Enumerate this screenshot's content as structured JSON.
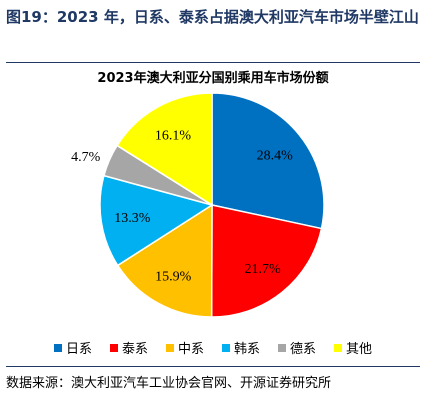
{
  "header": {
    "title": "图19：2023 年，日系、泰系占据澳大利亚汽车市场半壁江山"
  },
  "source": "数据来源：澳大利亚汽车工业协会官网、开源证券研究所",
  "colors": {
    "header": "#1f3864"
  },
  "chart_data": {
    "type": "pie",
    "title": "2023年澳大利亚分国别乘用车市场份额",
    "legend_position": "bottom",
    "slices": [
      {
        "name": "日系",
        "value": 28.4,
        "label": "28.4%",
        "color": "#0070c0"
      },
      {
        "name": "泰系",
        "value": 21.7,
        "label": "21.7%",
        "color": "#ff0000"
      },
      {
        "name": "中系",
        "value": 15.9,
        "label": "15.9%",
        "color": "#ffc000"
      },
      {
        "name": "韩系",
        "value": 13.3,
        "label": "13.3%",
        "color": "#00b0f0"
      },
      {
        "name": "德系",
        "value": 4.7,
        "label": "4.7%",
        "color": "#a6a6a6"
      },
      {
        "name": "其他",
        "value": 16.1,
        "label": "16.1%",
        "color": "#ffff00"
      }
    ]
  }
}
